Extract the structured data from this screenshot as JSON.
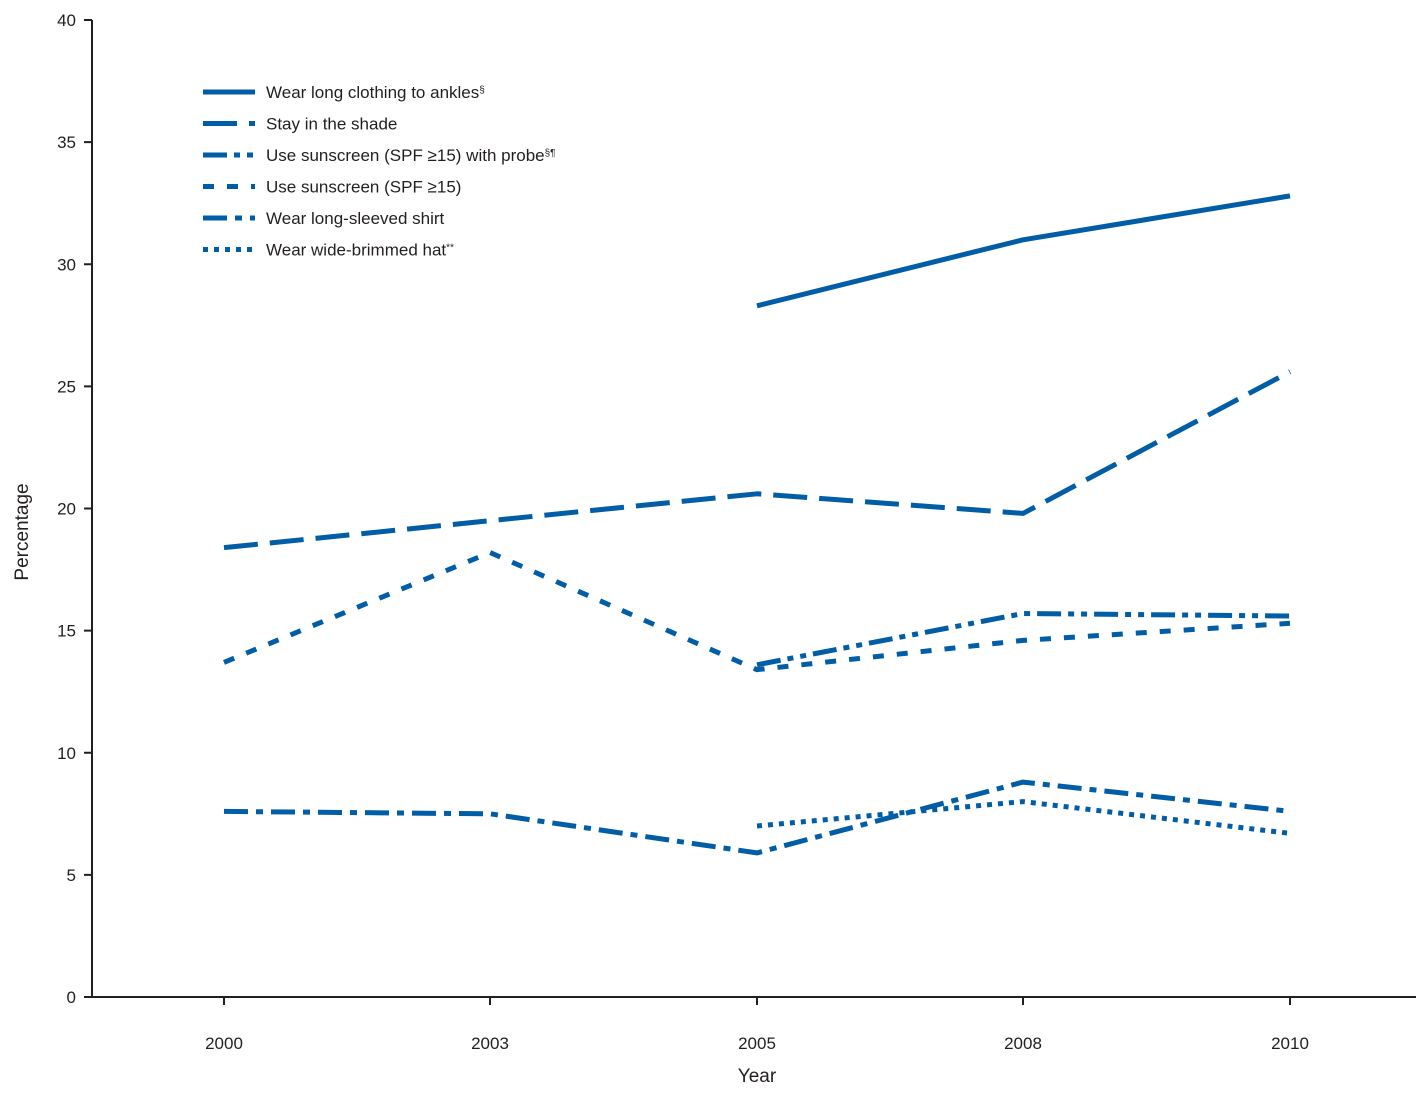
{
  "chart_data": {
    "type": "line",
    "title": "",
    "xlabel": "Year",
    "ylabel": "Percentage",
    "categories": [
      "2000",
      "2003",
      "2005",
      "2008",
      "2010"
    ],
    "ylim": [
      0,
      40
    ],
    "yticks": [
      0,
      5,
      10,
      15,
      20,
      25,
      30,
      35,
      40
    ],
    "grid": false,
    "legend_position": "top-left",
    "series_color": "#005da6",
    "series": [
      {
        "name": "Wear long clothing to ankles",
        "superscript": "§",
        "line_style": "solid",
        "values": [
          null,
          null,
          28.3,
          31.0,
          32.8
        ]
      },
      {
        "name": "Stay in the shade",
        "superscript": "",
        "line_style": "long-dash",
        "values": [
          18.4,
          19.5,
          20.6,
          19.8,
          25.6
        ]
      },
      {
        "name": "Use sunscreen (SPF ≥15) with probe",
        "superscript": "§¶",
        "line_style": "dash-dot-dot",
        "values": [
          null,
          null,
          13.6,
          15.7,
          15.6
        ]
      },
      {
        "name": "Use sunscreen (SPF ≥15)",
        "superscript": "",
        "line_style": "short-dash",
        "values": [
          13.7,
          18.2,
          13.4,
          14.6,
          15.3
        ]
      },
      {
        "name": "Wear long-sleeved shirt",
        "superscript": "",
        "line_style": "dash-dot",
        "values": [
          7.6,
          7.5,
          5.9,
          8.8,
          7.6
        ]
      },
      {
        "name": "Wear wide-brimmed hat",
        "superscript": "**",
        "line_style": "dotted",
        "values": [
          null,
          null,
          7.0,
          8.0,
          6.7
        ]
      }
    ]
  }
}
